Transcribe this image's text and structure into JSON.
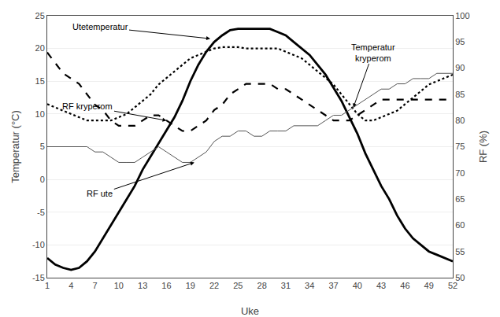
{
  "chart_data": {
    "type": "line",
    "xlabel": "Uke",
    "ylabel": "Temperatur (°C)",
    "y2label": "RF (%)",
    "x": [
      1,
      2,
      3,
      4,
      5,
      6,
      7,
      8,
      9,
      10,
      11,
      12,
      13,
      14,
      15,
      16,
      17,
      18,
      19,
      20,
      21,
      22,
      23,
      24,
      25,
      26,
      27,
      28,
      29,
      30,
      31,
      32,
      33,
      34,
      35,
      36,
      37,
      38,
      39,
      40,
      41,
      42,
      43,
      44,
      45,
      46,
      47,
      48,
      49,
      50,
      51,
      52
    ],
    "xlim": [
      1,
      52
    ],
    "xticks": [
      1,
      4,
      7,
      10,
      13,
      16,
      19,
      22,
      25,
      28,
      31,
      34,
      37,
      40,
      43,
      46,
      49,
      52
    ],
    "ylim": [
      -15,
      25
    ],
    "yticks": [
      -15,
      -10,
      -5,
      0,
      5,
      10,
      15,
      20,
      25
    ],
    "y2lim": [
      50,
      100
    ],
    "y2ticks": [
      50,
      55,
      60,
      65,
      70,
      75,
      80,
      85,
      90,
      95,
      100
    ],
    "grid": true,
    "series": [
      {
        "color": "#000000",
        "line_style": "solid",
        "values": [
          -12.0,
          -13.0,
          -13.5,
          -13.8,
          -13.5,
          -12.5,
          -11.0,
          -9.0,
          -7.0,
          -5.0,
          -3.0,
          -1.0,
          1.5,
          3.5,
          5.5,
          7.5,
          9.5,
          12.0,
          15.0,
          17.5,
          19.5,
          21.0,
          22.0,
          22.8,
          23.0,
          23.0,
          23.0,
          23.0,
          23.0,
          22.5,
          22.0,
          21.0,
          20.0,
          19.0,
          17.5,
          16.0,
          14.0,
          12.0,
          9.5,
          7.0,
          4.0,
          1.5,
          -1.0,
          -3.0,
          -5.5,
          -7.5,
          -9.0,
          -10.0,
          -11.0,
          -11.5,
          -12.0,
          -12.5
        ]
      },
      {
        "color": "#000000",
        "line_style": "dotted",
        "values": [
          11.5,
          11.0,
          10.5,
          10.0,
          9.5,
          9.0,
          9.0,
          9.0,
          9.0,
          9.5,
          10.0,
          11.0,
          12.0,
          13.0,
          14.5,
          15.5,
          16.5,
          17.5,
          18.5,
          19.0,
          19.5,
          20.0,
          20.2,
          20.2,
          20.2,
          20.0,
          20.0,
          20.0,
          20.0,
          20.0,
          19.5,
          19.0,
          18.5,
          17.5,
          16.5,
          15.5,
          14.5,
          13.0,
          11.5,
          10.0,
          9.0,
          9.0,
          9.5,
          10.0,
          10.5,
          11.5,
          12.5,
          13.5,
          14.5,
          15.0,
          15.5,
          16.0
        ]
      },
      {
        "color": "#000000",
        "line_style": "dashed",
        "axis": "y2",
        "values": [
          93,
          91,
          89,
          88,
          87,
          85,
          83,
          82,
          80,
          79,
          79,
          79,
          80,
          81,
          81,
          80,
          79,
          78,
          78,
          79,
          80,
          82,
          83,
          85,
          86,
          87,
          87,
          87,
          87,
          86,
          86,
          85,
          84,
          83,
          82,
          81,
          80,
          80,
          80,
          81,
          82,
          83,
          84,
          84,
          84,
          84,
          84,
          84,
          84,
          84,
          84,
          84
        ]
      },
      {
        "color": "#555555",
        "line_style": "solid",
        "axis": "y2",
        "values": [
          75,
          75,
          75,
          75,
          75,
          75,
          74,
          74,
          73,
          72,
          72,
          72,
          73,
          74,
          75,
          74,
          73,
          72,
          72,
          73,
          74,
          76,
          77,
          77,
          78,
          78,
          77,
          77,
          78,
          78,
          78,
          79,
          79,
          79,
          79,
          80,
          81,
          81,
          82,
          83,
          84,
          85,
          86,
          86,
          87,
          87,
          88,
          88,
          88,
          89,
          89,
          89
        ]
      }
    ],
    "annotations": [
      {
        "text": "Utetemperatur",
        "x": 21.5,
        "y": 21.5
      },
      {
        "text": "RF kryperom",
        "x": 16.0,
        "y": 80.0,
        "axis": "y2"
      },
      {
        "text": "RF ute",
        "x": 19.5,
        "y": 72.0,
        "axis": "y2"
      },
      {
        "text": "Temperatur\nkryperom",
        "x": 39.5,
        "y": 11.0
      }
    ]
  }
}
